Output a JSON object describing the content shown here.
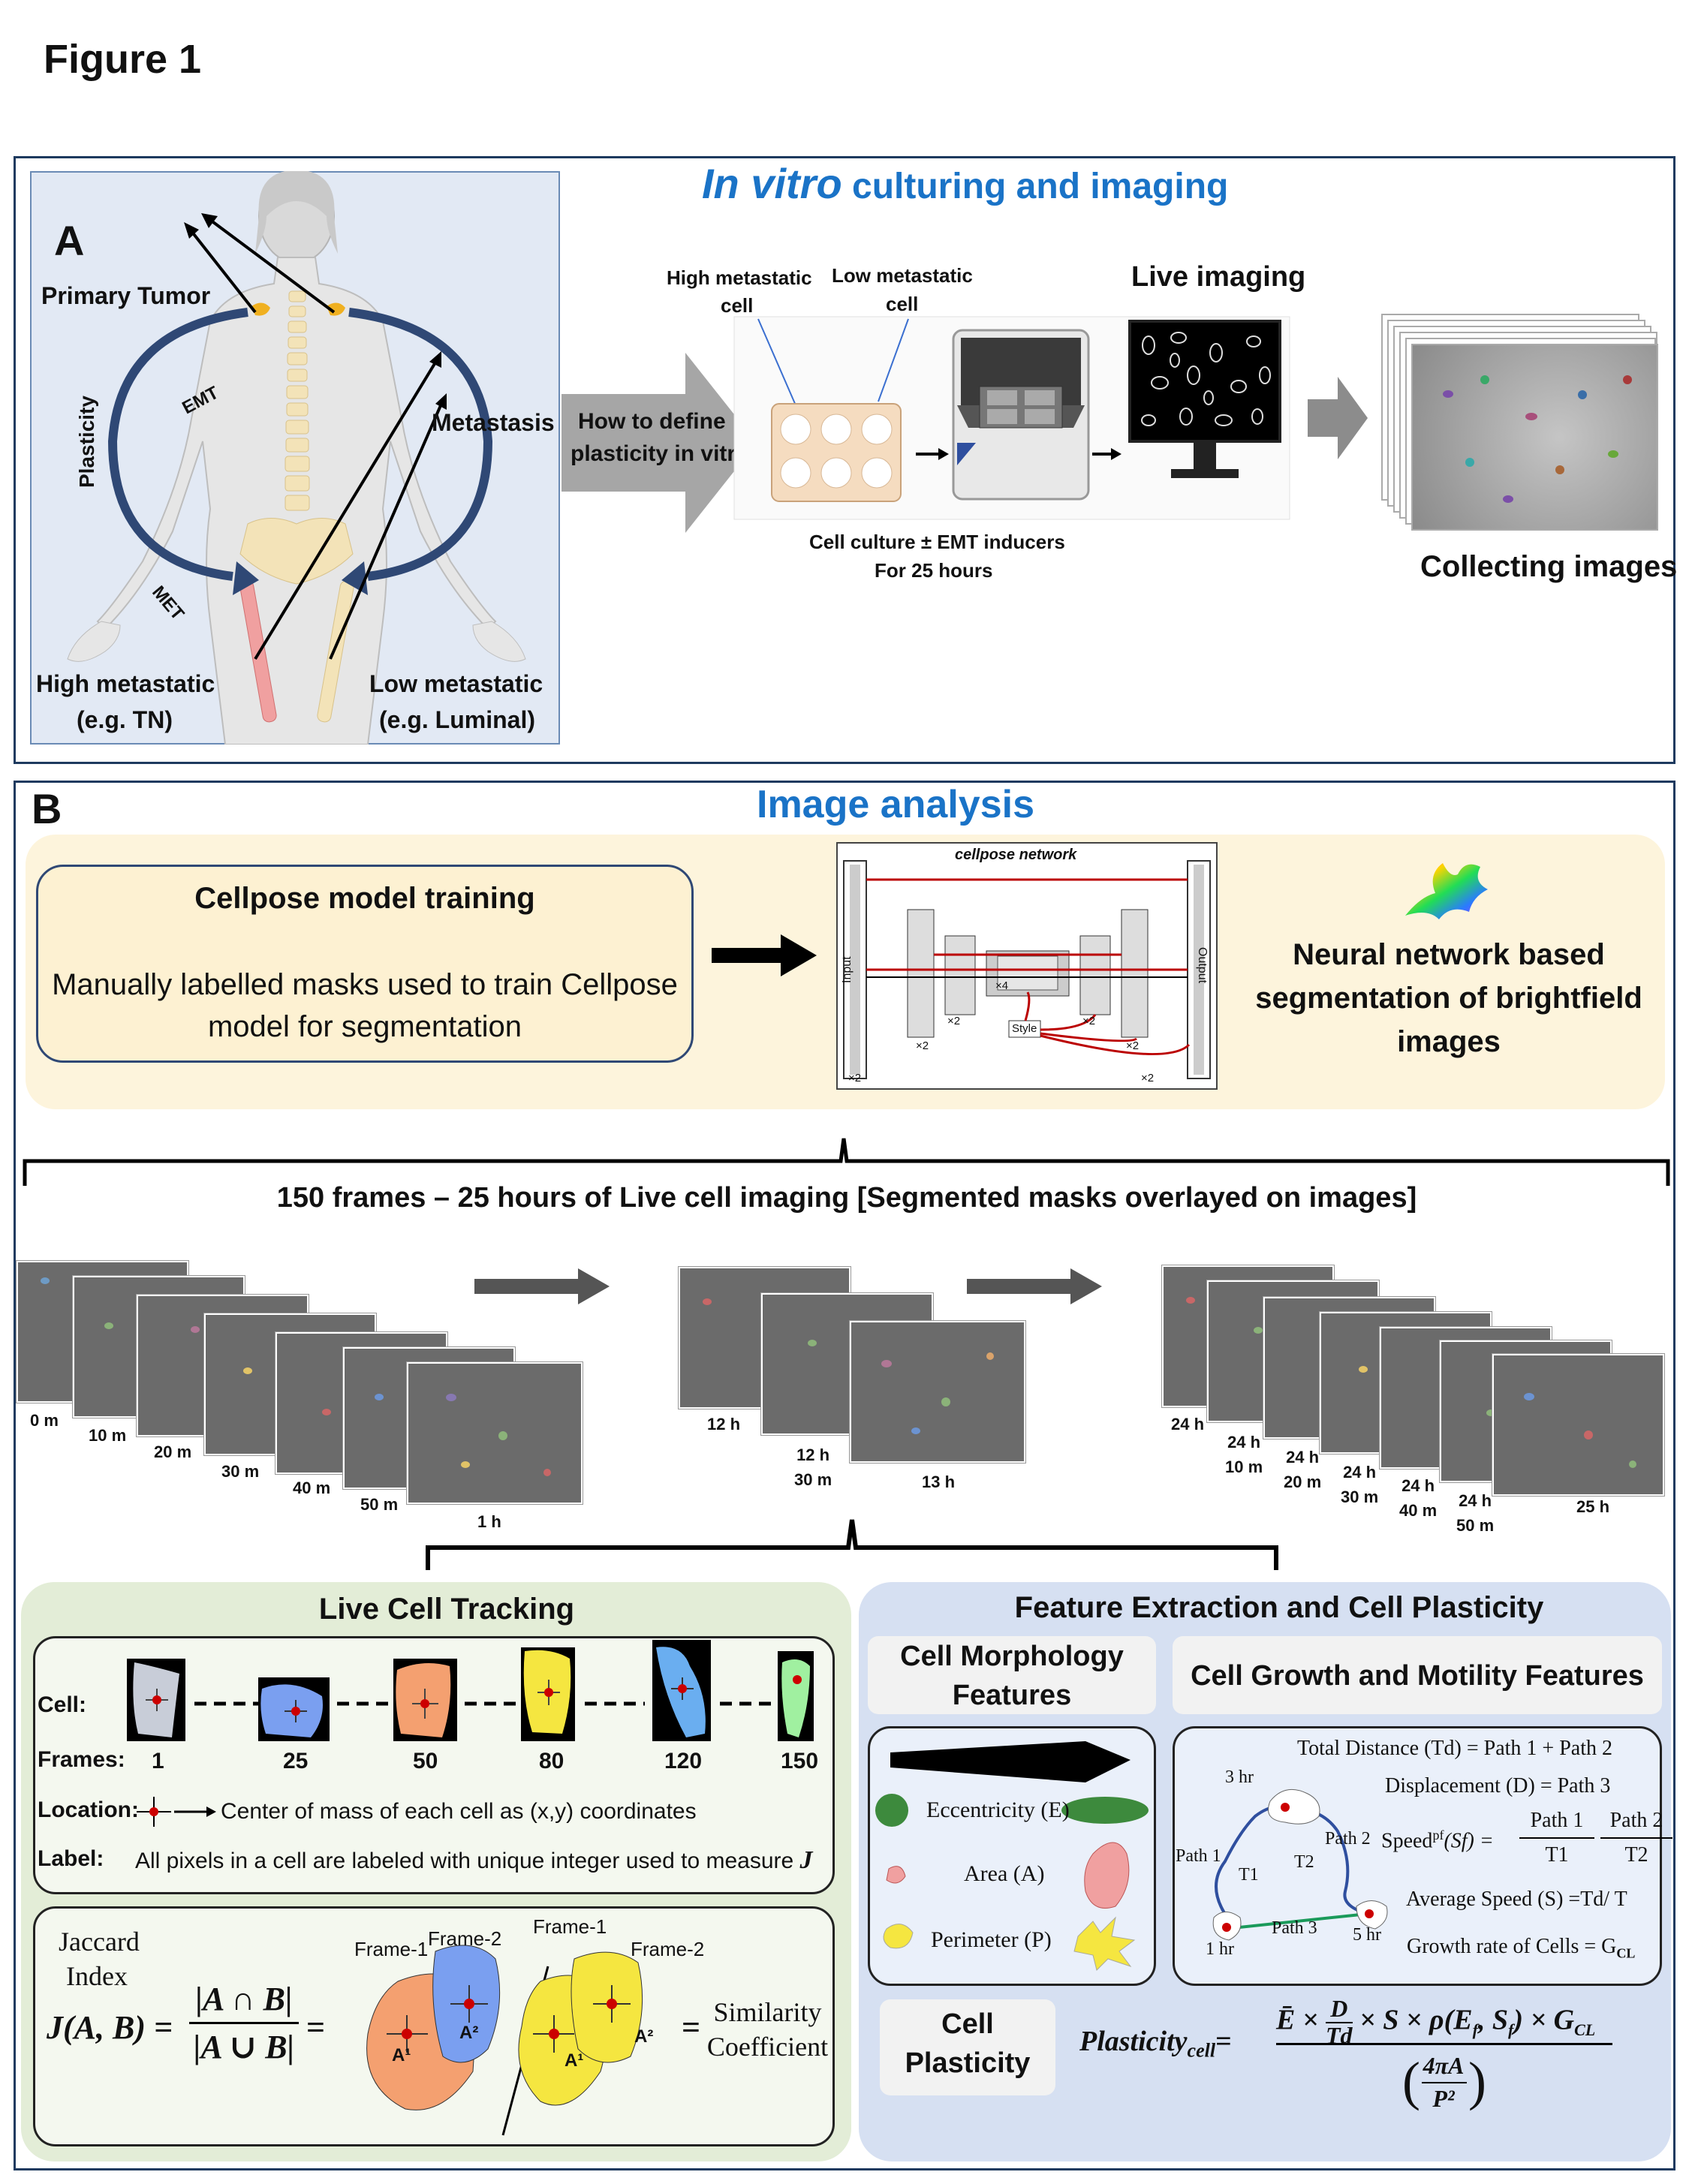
{
  "figure_title": "Figure 1",
  "panel_a": {
    "letter": "A",
    "title_italic": "In vitro",
    "title_rest": " culturing and imaging",
    "primary_tumor": "Primary Tumor",
    "metastasis": "Metastasis",
    "emt": "EMT",
    "met": "MET",
    "plasticity": "Plasticity",
    "high_metastatic": "High metastatic",
    "high_example": "(e.g. TN)",
    "low_metastatic": "Low metastatic",
    "low_example": "(e.g. Luminal)",
    "arrow_text_1": "How to define",
    "arrow_text_2": "plasticity in vitro",
    "high_cell_1": "High metastatic",
    "high_cell_2": "cell",
    "low_cell_1": "Low metastatic",
    "low_cell_2": "cell",
    "live_imaging": "Live imaging",
    "culture_1": "Cell culture ± EMT inducers",
    "culture_2": "For 25 hours",
    "collecting": "Collecting images"
  },
  "panel_b": {
    "letter": "B",
    "title": "Image analysis",
    "cellpose_title": "Cellpose model training",
    "cellpose_desc_1": "Manually labelled masks used to train Cellpose",
    "cellpose_desc_2": "model for segmentation",
    "network": {
      "title": "cellpose network",
      "input": "Input",
      "output": "Output",
      "style": "Style",
      "x2": "×2",
      "x4": "×4"
    },
    "neural_1": "Neural network based",
    "neural_2": "segmentation of brightfield",
    "neural_3": "images",
    "frames_title": "150 frames – 25 hours of Live cell imaging [Segmented masks overlayed on images]",
    "stack1_labels": [
      "0 m",
      "10 m",
      "20 m",
      "30 m",
      "40 m",
      "50 m",
      "1 h"
    ],
    "stack2_labels": [
      "12 h",
      "12 h\n30 m",
      "13 h"
    ],
    "stack3_labels": [
      "24 h",
      "24 h\n10 m",
      "24 h\n20 m",
      "24 h\n30 m",
      "24 h\n40 m",
      "24 h\n50 m",
      "25 h"
    ],
    "tracking": {
      "title": "Live Cell Tracking",
      "cell_label": "Cell:",
      "frames_label": "Frames:",
      "frames": [
        "1",
        "25",
        "50",
        "80",
        "120",
        "150"
      ],
      "cell_colors": [
        "#c8cdd8",
        "#7a9ff0",
        "#f4a070",
        "#f5e640",
        "#6aaef0",
        "#a0f0a0"
      ],
      "location_label": "Location:",
      "location_text": "Center of mass of each cell as (x,y) coordinates",
      "label_label": "Label:",
      "label_text": "All pixels in a cell are labeled with unique integer used to measure",
      "label_j": "J",
      "jaccard_1": "Jaccard",
      "jaccard_2": "Index",
      "j_formula": "J(A, B) =",
      "numerator": "|A ∩ B|",
      "denominator": "|A ∪ B|",
      "equals": "=",
      "frame1": "Frame-1",
      "frame2": "Frame-2",
      "a1": "A¹",
      "a2": "A²",
      "similarity_1": "Similarity",
      "similarity_2": "Coefficient"
    },
    "features": {
      "title": "Feature Extraction and Cell Plasticity",
      "morph_1": "Cell Morphology",
      "morph_2": "Features",
      "growth": "Cell Growth and Motility Features",
      "eccentricity": "Eccentricity (E)",
      "area": "Area (A)",
      "perimeter": "Perimeter (P)",
      "total_distance": "Total Distance (Td) = Path 1 + Path 2",
      "displacement": "Displacement (D) = Path 3",
      "speed_label": "Speed",
      "speed_sup": "pf",
      "speed_sym": "(Sf) =",
      "path1": "Path 1",
      "path2": "Path 2",
      "t1": "T1",
      "t2": "T2",
      "avg_speed": "Average Speed (S) =Td/ T",
      "growth_rate": "Growth rate of Cells = G",
      "growth_sub": "CL",
      "hr3": "3 hr",
      "hr1": "1 hr",
      "hr5": "5 hr",
      "path3": "Path 3",
      "cell_plast_1": "Cell",
      "cell_plast_2": "Plasticity",
      "plast_label": "Plasticity",
      "plast_sub": "cell",
      "plast_num": "Ē × (D/Td) × S × ρ(Ef, Sf) × GCL",
      "plast_den": "(4πA / P²)",
      "plast_num_e": "Ē ×",
      "plast_num_d": "D",
      "plast_num_td": "Td",
      "plast_num_rest": "× S × ρ(E",
      "plast_num_f": "f",
      "plast_num_sf": ", S",
      "plast_num_end": ") × G",
      "plast_num_cl": "CL",
      "plast_den_top": "4πA",
      "plast_den_bot": "P²"
    }
  }
}
